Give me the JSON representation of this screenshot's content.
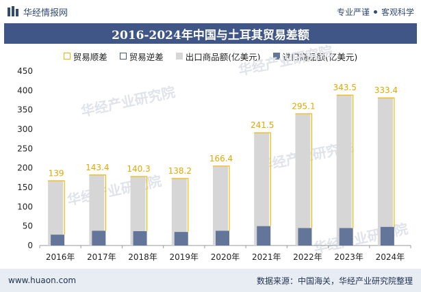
{
  "header": {
    "brand_name": "华经情报网",
    "slogan_left": "专业严谨",
    "slogan_right": "客观科学"
  },
  "watermark_text": "华经产业研究院",
  "footer": {
    "website": "www.huaon.com",
    "source": "数据来源：中国海关，华经产业研究院整理"
  },
  "colors": {
    "title_bg": "#3f5686",
    "export_bar": "#d6d6d6",
    "import_bar": "#63769a",
    "surplus_bracket": "#f2b600",
    "deficit_bracket": "#3f5686"
  },
  "chart_data": {
    "type": "bar",
    "title": "2016-2024年中国与土耳其贸易差额",
    "categories": [
      "2016年",
      "2017年",
      "2018年",
      "2019年",
      "2020年",
      "2021年",
      "2022年",
      "2023年",
      "2024年"
    ],
    "series": [
      {
        "name": "出口商品额(亿美元)",
        "values": [
          167,
          182,
          178,
          173,
          205,
          291,
          340,
          388,
          381
        ]
      },
      {
        "name": "进口商品额(亿美元)",
        "values": [
          28,
          38,
          37,
          35,
          38,
          50,
          45,
          45,
          48
        ]
      }
    ],
    "surplus": {
      "name": "贸易顺差",
      "values": [
        139,
        143.4,
        140.3,
        138.2,
        166.4,
        241.5,
        295.1,
        343.5,
        333.4
      ],
      "labels": [
        "139",
        "143.4",
        "140.3",
        "138.2",
        "166.4",
        "241.5",
        "295.1",
        "343.5",
        "333.4"
      ]
    },
    "deficit": {
      "name": "贸易逆差"
    },
    "ylim": [
      0,
      450
    ],
    "yticks": [
      0,
      50,
      100,
      150,
      200,
      250,
      300,
      350,
      400,
      450
    ],
    "ytick_labels": [
      "0",
      "50",
      "100",
      "150",
      "200",
      "250",
      "300",
      "350",
      "400",
      "450"
    ],
    "xlabel": "",
    "ylabel": ""
  }
}
